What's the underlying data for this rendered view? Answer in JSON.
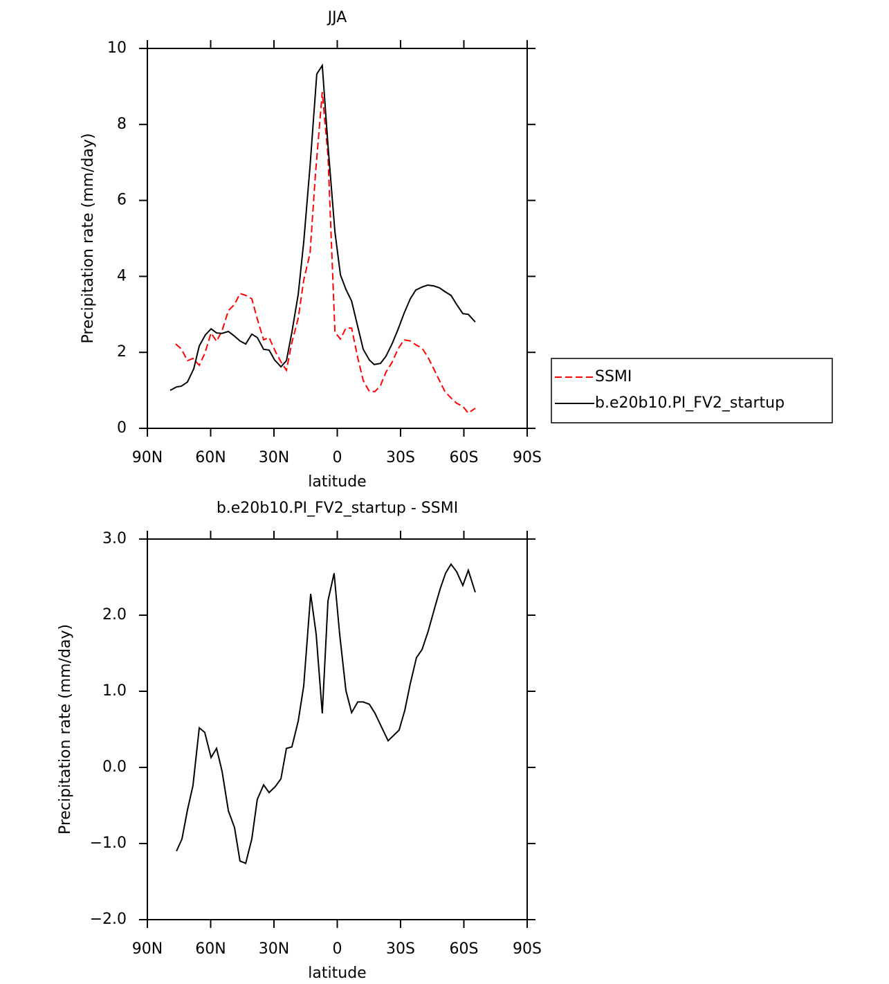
{
  "chart_data": [
    {
      "type": "line",
      "title": "JJA",
      "xlabel": "latitude",
      "ylabel": "Precipitation rate (mm/day)",
      "xlim": [
        90,
        -90
      ],
      "xticks": [
        {
          "value": 90,
          "label": "90N"
        },
        {
          "value": 60,
          "label": "60N"
        },
        {
          "value": 30,
          "label": "30N"
        },
        0,
        {
          "value": -30,
          "label": "30S"
        },
        {
          "value": -60,
          "label": "60S"
        },
        {
          "value": -90,
          "label": "90S"
        }
      ],
      "ylim": [
        0,
        10
      ],
      "yticks": [
        0,
        2,
        4,
        6,
        8,
        10
      ],
      "legend": "right",
      "series": [
        {
          "name": "SSMI",
          "color": "#ff0000",
          "dash": true,
          "x": [
            76.6,
            73.9,
            71,
            68.4,
            65.4,
            62.8,
            59.8,
            57.2,
            54.6,
            51.6,
            48.7,
            46.1,
            43.4,
            40.5,
            37.9,
            34.9,
            32.3,
            29.3,
            26.7,
            24.1,
            21.5,
            18.5,
            15.9,
            12.9,
            10.3,
            7.1,
            4.4,
            1.1,
            -1.5,
            -4.1,
            -6.8,
            -9.7,
            -12.3,
            -15.2,
            -17.9,
            -20.5,
            -23.1,
            -26.1,
            -28.7,
            -31.6,
            -34.6,
            -37.2,
            -40.2,
            -42.8,
            -45.7,
            -48.4,
            -51,
            -53.9,
            -56.6,
            -59.5,
            -62.1,
            -65.4
          ],
          "values": [
            2.22,
            2.09,
            1.78,
            1.84,
            1.66,
            1.97,
            2.51,
            2.29,
            2.57,
            3.1,
            3.26,
            3.55,
            3.5,
            3.41,
            2.88,
            2.33,
            2.39,
            2.02,
            1.75,
            1.53,
            2.26,
            2.9,
            3.9,
            4.61,
            6.72,
            8.85,
            7.18,
            2.53,
            2.35,
            2.64,
            2.64,
            1.86,
            1.26,
            0.97,
            0.97,
            1.13,
            1.48,
            1.75,
            2.08,
            2.33,
            2.3,
            2.2,
            2.11,
            1.89,
            1.57,
            1.26,
            0.97,
            0.8,
            0.66,
            0.58,
            0.4,
            0.53
          ]
        },
        {
          "name": "b.e20b10.PI_FV2_startup",
          "color": "#000000",
          "dash": false,
          "x": [
            79.2,
            76.2,
            73.9,
            71,
            68,
            65.4,
            62.5,
            59.8,
            57.2,
            54.6,
            51.6,
            49,
            46.1,
            43.4,
            40.5,
            37.9,
            34.9,
            32.3,
            29.7,
            26.7,
            24.1,
            21.5,
            18.5,
            15.9,
            12.9,
            9.7,
            7.1,
            4.4,
            1.1,
            -1.5,
            -4.1,
            -6.8,
            -9.7,
            -12.3,
            -15.2,
            -17.5,
            -20.5,
            -23.1,
            -26.1,
            -28.7,
            -31.6,
            -34.6,
            -37.2,
            -40.2,
            -42.8,
            -45.7,
            -48.4,
            -51,
            -53.9,
            -56.6,
            -59.5,
            -62.1,
            -65.4
          ],
          "values": [
            1.0,
            1.09,
            1.11,
            1.22,
            1.57,
            2.17,
            2.46,
            2.62,
            2.51,
            2.5,
            2.55,
            2.44,
            2.3,
            2.22,
            2.48,
            2.39,
            2.08,
            2.06,
            1.8,
            1.62,
            1.78,
            2.53,
            3.53,
            4.9,
            6.9,
            9.33,
            9.55,
            7.45,
            5.17,
            4.04,
            3.66,
            3.35,
            2.68,
            2.08,
            1.8,
            1.68,
            1.71,
            1.9,
            2.24,
            2.59,
            3.02,
            3.41,
            3.64,
            3.72,
            3.77,
            3.75,
            3.7,
            3.6,
            3.5,
            3.26,
            3.02,
            3.0,
            2.8
          ]
        }
      ]
    },
    {
      "type": "line",
      "title": "b.e20b10.PI_FV2_startup - SSMI",
      "xlabel": "latitude",
      "ylabel": "Precipitation rate (mm/day)",
      "xlim": [
        90,
        -90
      ],
      "xticks": [
        {
          "value": 90,
          "label": "90N"
        },
        {
          "value": 60,
          "label": "60N"
        },
        {
          "value": 30,
          "label": "30N"
        },
        0,
        {
          "value": -30,
          "label": "30S"
        },
        {
          "value": -60,
          "label": "60S"
        },
        {
          "value": -90,
          "label": "90S"
        }
      ],
      "ylim": [
        -2,
        3
      ],
      "yticks": [
        {
          "value": -2,
          "label": "−2.0"
        },
        {
          "value": -1,
          "label": "−1.0"
        },
        {
          "value": 0,
          "label": "0.0"
        },
        {
          "value": 1,
          "label": "1.0"
        },
        {
          "value": 2,
          "label": "2.0"
        },
        {
          "value": 3,
          "label": "3.0"
        }
      ],
      "series": [
        {
          "color": "#000000",
          "dash": false,
          "x": [
            76.2,
            73.6,
            71,
            68.4,
            65.4,
            62.8,
            59.8,
            57.2,
            54.6,
            51.6,
            48.7,
            46.1,
            43.4,
            40.5,
            37.9,
            34.9,
            32.3,
            29.3,
            26.7,
            24.1,
            21.5,
            18.5,
            15.9,
            12.6,
            10,
            7.1,
            4.4,
            1.5,
            -1.1,
            -4.1,
            -6.8,
            -9.7,
            -12.3,
            -15.2,
            -17.9,
            -20.8,
            -24.1,
            -26.7,
            -29.3,
            -32,
            -34.6,
            -37.5,
            -40.2,
            -43.1,
            -45.7,
            -48.7,
            -51.3,
            -53.9,
            -56.6,
            -59.5,
            -62.1,
            -65.4
          ],
          "values": [
            -1.1,
            -0.94,
            -0.56,
            -0.24,
            0.52,
            0.46,
            0.13,
            0.25,
            -0.05,
            -0.57,
            -0.79,
            -1.23,
            -1.26,
            -0.94,
            -0.42,
            -0.23,
            -0.33,
            -0.25,
            -0.15,
            0.25,
            0.27,
            0.61,
            1.07,
            2.28,
            1.75,
            0.71,
            2.19,
            2.55,
            1.76,
            1.01,
            0.72,
            0.86,
            0.86,
            0.83,
            0.71,
            0.54,
            0.35,
            0.42,
            0.49,
            0.75,
            1.1,
            1.44,
            1.55,
            1.79,
            2.05,
            2.34,
            2.55,
            2.67,
            2.57,
            2.39,
            2.59,
            2.3
          ]
        }
      ]
    }
  ]
}
